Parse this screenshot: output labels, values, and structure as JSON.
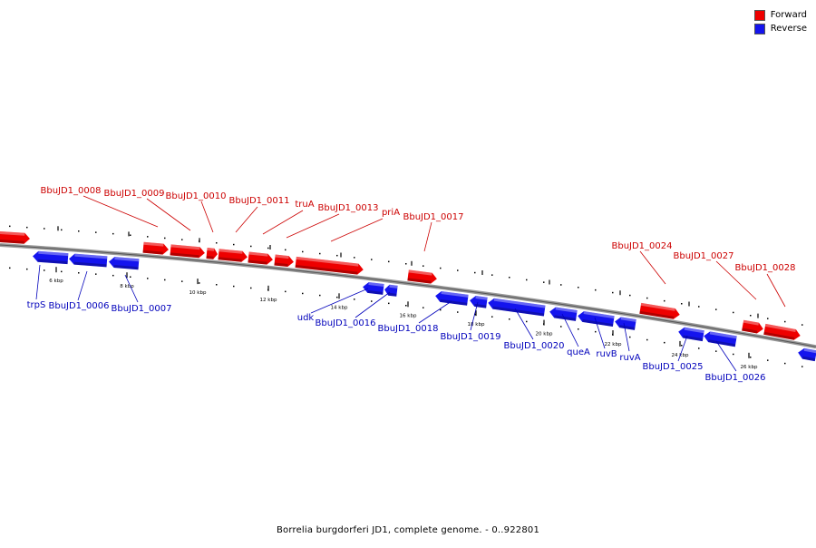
{
  "caption": "Borrelia burgdorferi JD1, complete genome. - 0..922801",
  "legend": [
    {
      "label": "Forward",
      "color": "#ee0000"
    },
    {
      "label": "Reverse",
      "color": "#1414ee"
    }
  ],
  "colors": {
    "forward": "#ee0000",
    "reverse": "#1414ee",
    "backbone": "#999999",
    "label_forward": "#cc0000",
    "label_reverse": "#0000bb"
  },
  "scale_labels": [
    "6 kbp",
    "8 kbp",
    "10 kbp",
    "12 kbp",
    "14 kbp",
    "16 kbp",
    "18 kbp",
    "20 kbp",
    "22 kbp",
    "24 kbp",
    "26 kbp"
  ],
  "forward_genes": [
    "BbuJD1_0008",
    "BbuJD1_0009",
    "BbuJD1_0010",
    "BbuJD1_0011",
    "truA",
    "BbuJD1_0013",
    "priA",
    "BbuJD1_0017",
    "BbuJD1_0024",
    "BbuJD1_0027",
    "BbuJD1_0028"
  ],
  "reverse_genes": [
    "trpS",
    "BbuJD1_0006",
    "BbuJD1_0007",
    "udk",
    "BbuJD1_0016",
    "BbuJD1_0018",
    "BbuJD1_0019",
    "BbuJD1_0020",
    "queA",
    "ruvB",
    "ruvA",
    "BbuJD1_0025",
    "BbuJD1_0026"
  ]
}
